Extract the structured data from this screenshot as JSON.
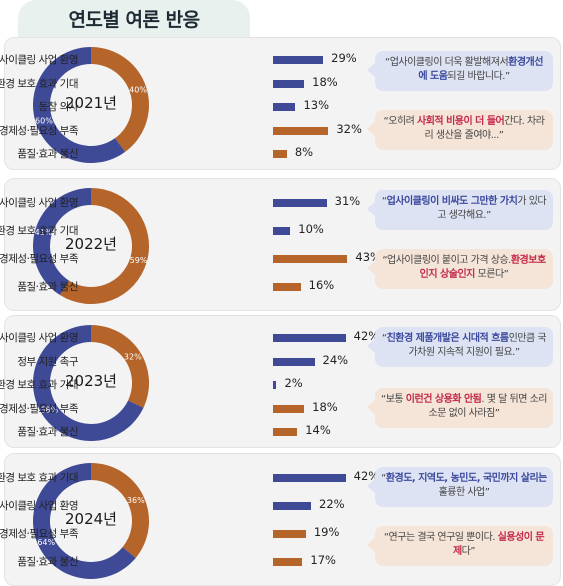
{
  "title": "연도별 여론 반응",
  "colors": {
    "blue": "#3f4a97",
    "orange": "#b5642a",
    "panel": "#f3f3f3"
  },
  "chart_data": [
    {
      "type": "bar",
      "year": "2021년",
      "donut": {
        "orange_pct": "40%",
        "blue_pct": "60%",
        "orange": 40,
        "blue": 60
      },
      "categories": [
        "업사이클링 사업 환영",
        "환경 보호 효과 기대",
        "동참 의사",
        "경제성·필요성 부족",
        "품질·효과 불신"
      ],
      "values": [
        29,
        18,
        13,
        32,
        8
      ],
      "value_labels": [
        "29%",
        "18%",
        "13%",
        "32%",
        "8%"
      ],
      "bar_colors": [
        "blue",
        "blue",
        "blue",
        "orange",
        "orange"
      ],
      "quotes": [
        {
          "style": "blue",
          "pre": "“업사이클링이 더욱 활발해져서",
          "hl": "환경개선에 도움",
          "post": "되길 바랍니다.”"
        },
        {
          "style": "orange",
          "pre": "“오히려 ",
          "hl": "사회적 비용이 더 들어",
          "post": "간다. 차라리 생산을 줄여야...”"
        }
      ]
    },
    {
      "type": "bar",
      "year": "2022년",
      "donut": {
        "orange_pct": "59%",
        "blue_pct": "41%",
        "orange": 59,
        "blue": 41
      },
      "categories": [
        "업사이클링 사업 환영",
        "환경 보호 효과 기대",
        "경제성·필요성 부족",
        "품질·효과 불신"
      ],
      "values": [
        31,
        10,
        43,
        16
      ],
      "value_labels": [
        "31%",
        "10%",
        "43%",
        "16%"
      ],
      "bar_colors": [
        "blue",
        "blue",
        "orange",
        "orange"
      ],
      "quotes": [
        {
          "style": "blue",
          "pre": "“",
          "hl": "업사이클링이 비싸도 그만한 가치",
          "post": "가 있다고 생각해요.”"
        },
        {
          "style": "orange",
          "pre": "“업사이클링이 붙이고 가격 상승.",
          "hl": "환경보호인지 상술인지",
          "post": " 모른다”"
        }
      ]
    },
    {
      "type": "bar",
      "year": "2023년",
      "donut": {
        "orange_pct": "32%",
        "blue_pct": "68%",
        "orange": 32,
        "blue": 68
      },
      "categories": [
        "업사이클링 사업 환영",
        "정부 지원 촉구",
        "환경 보호 효과 기대",
        "경제성·필요성 부족",
        "품질·효과 불신"
      ],
      "values": [
        42,
        24,
        2,
        18,
        14
      ],
      "value_labels": [
        "42%",
        "24%",
        "2%",
        "18%",
        "14%"
      ],
      "bar_colors": [
        "blue",
        "blue",
        "blue",
        "orange",
        "orange"
      ],
      "quotes": [
        {
          "style": "blue",
          "pre": "“",
          "hl": "친환경 제품개발은 시대적 흐름",
          "post": "인만큼 국가차원 지속적 지원이 필요.”"
        },
        {
          "style": "orange",
          "pre": "“보통 ",
          "hl": "이런건 상용화 안됨",
          "post": ". 몇 달 뒤면 소리소문 없이 사라짐”"
        }
      ]
    },
    {
      "type": "bar",
      "year": "2024년",
      "donut": {
        "orange_pct": "36%",
        "blue_pct": "64%",
        "orange": 36,
        "blue": 64
      },
      "categories": [
        "환경 보호 효과 기대",
        "업사이클링 사업 환영",
        "경제성·필요성 부족",
        "품질·효과 불신"
      ],
      "values": [
        42,
        22,
        19,
        17
      ],
      "value_labels": [
        "42%",
        "22%",
        "19%",
        "17%"
      ],
      "bar_colors": [
        "blue",
        "blue",
        "orange",
        "orange"
      ],
      "quotes": [
        {
          "style": "blue",
          "pre": "“",
          "hl": "환경도, 지역도, 농민도, 국민까지 살리는",
          "post": " 훌륭한 사업”"
        },
        {
          "style": "orange",
          "pre": "“연구는 결국 연구일 뿐이다. ",
          "hl": "실용성이 문제",
          "post": "다”"
        }
      ]
    }
  ]
}
